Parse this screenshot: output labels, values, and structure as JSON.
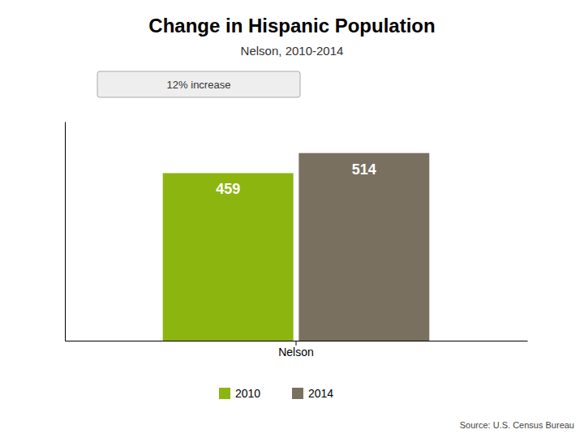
{
  "chart_data": {
    "type": "bar",
    "title": "Change in Hispanic Population",
    "subtitle": "Nelson, 2010-2014",
    "annotation": "12%  increase",
    "source": "Source: U.S. Census Bureau",
    "categories": [
      "Nelson"
    ],
    "series": [
      {
        "name": "2010",
        "color": "#8db510",
        "values": [
          459
        ]
      },
      {
        "name": "2014",
        "color": "#7a7060",
        "values": [
          514
        ]
      }
    ],
    "ylim": [
      0,
      600
    ],
    "yticks": [],
    "tick_labels": "x",
    "data_labels": true,
    "legend": "bottom"
  }
}
